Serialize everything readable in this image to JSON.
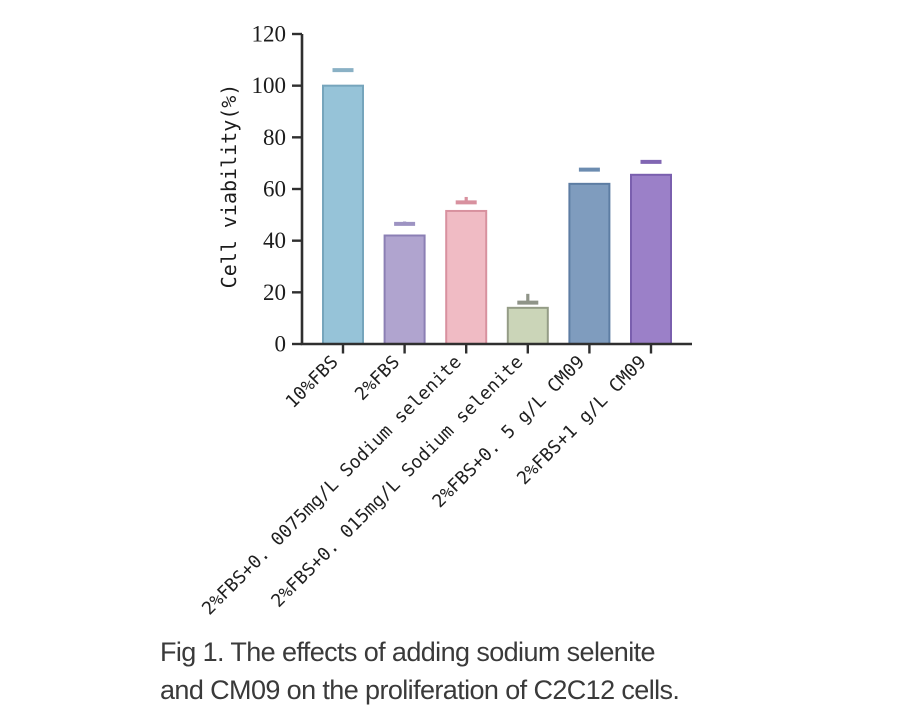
{
  "figure": {
    "caption": {
      "line1": "Fig 1. The effects of adding sodium selenite",
      "line2": "and CM09 on the proliferation of C2C12 cells."
    }
  },
  "chart_data": {
    "type": "bar",
    "title": "",
    "xlabel": "",
    "ylabel": "Cell viability(%)",
    "ylim": [
      0,
      120
    ],
    "yticks": [
      0,
      20,
      40,
      60,
      80,
      100,
      120
    ],
    "grid": false,
    "legend": false,
    "categories": [
      "10%FBS",
      "2%FBS",
      "2%FBS+0. 0075mg/L Sodium selenite",
      "2%FBS+0. 015mg/L Sodium selenite",
      "2%FBS+0. 5 g/L CM09",
      "2%FBS+1 g/L CM09"
    ],
    "values": [
      100,
      42,
      51.5,
      14,
      62,
      65.5
    ],
    "errors": [
      6,
      4.5,
      3.3,
      2,
      5.5,
      5
    ],
    "bar_fill_colors": [
      "#96c3d8",
      "#b0a4cf",
      "#f0bbc4",
      "#cbd5b8",
      "#7f9cbe",
      "#9b80c8"
    ],
    "bar_edge_colors": [
      "#76a5bc",
      "#8b7fb4",
      "#d8919f",
      "#949c86",
      "#5d7da3",
      "#7a5fae"
    ],
    "error_bar_colors": [
      "#8ab1c5",
      "#9d93c2",
      "#d8919f",
      "#8f9488",
      "#6c8cb0",
      "#8166b3"
    ],
    "axis_color": "#2f2f2f"
  }
}
